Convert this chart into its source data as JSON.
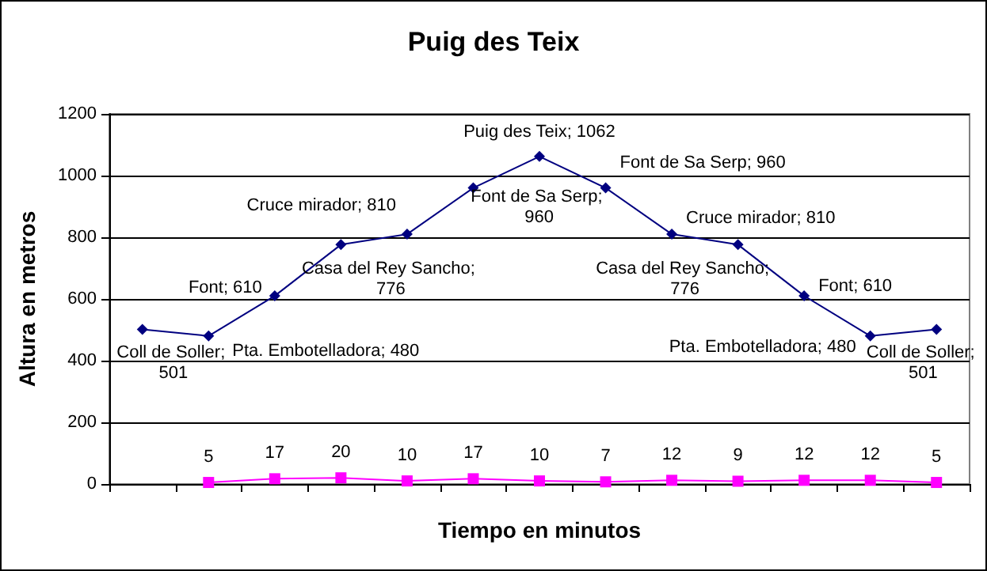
{
  "chart_data": {
    "type": "line",
    "title": "Puig des Teix",
    "xlabel": "Tiempo en minutos",
    "ylabel": "Altura en metros",
    "categories": [
      null,
      null,
      null,
      null,
      null,
      null,
      null,
      null,
      null,
      null,
      null,
      null,
      null
    ],
    "ylim": [
      0,
      1200
    ],
    "yticks": [
      0,
      200,
      400,
      600,
      800,
      1000,
      1200
    ],
    "grid": "y",
    "series": [
      {
        "color": "#000080",
        "marker": "diamond",
        "values": [
          501,
          480,
          610,
          776,
          810,
          960,
          1062,
          960,
          810,
          776,
          610,
          480,
          501
        ],
        "value_labels": [
          "Coll de Soller; 501",
          "Pta. Embotelladora; 480",
          "Font; 610",
          "Casa del Rey Sancho; 776",
          "Cruce mirador; 810",
          "Font de Sa Serp; 960",
          "Puig des Teix; 1062",
          "Font de Sa Serp; 960",
          "Cruce mirador; 810",
          "Casa del Rey Sancho; 776",
          "Font; 610",
          "Pta. Embotelladora; 480",
          "Coll de Soller; 501"
        ]
      },
      {
        "color": "#ff00ff",
        "marker": "square",
        "values": [
          null,
          5,
          17,
          20,
          10,
          17,
          10,
          7,
          12,
          9,
          12,
          12,
          5
        ],
        "value_labels": [
          null,
          "5",
          "17",
          "20",
          "10",
          "17",
          "10",
          "7",
          "12",
          "9",
          "12",
          "12",
          "5"
        ]
      }
    ]
  }
}
